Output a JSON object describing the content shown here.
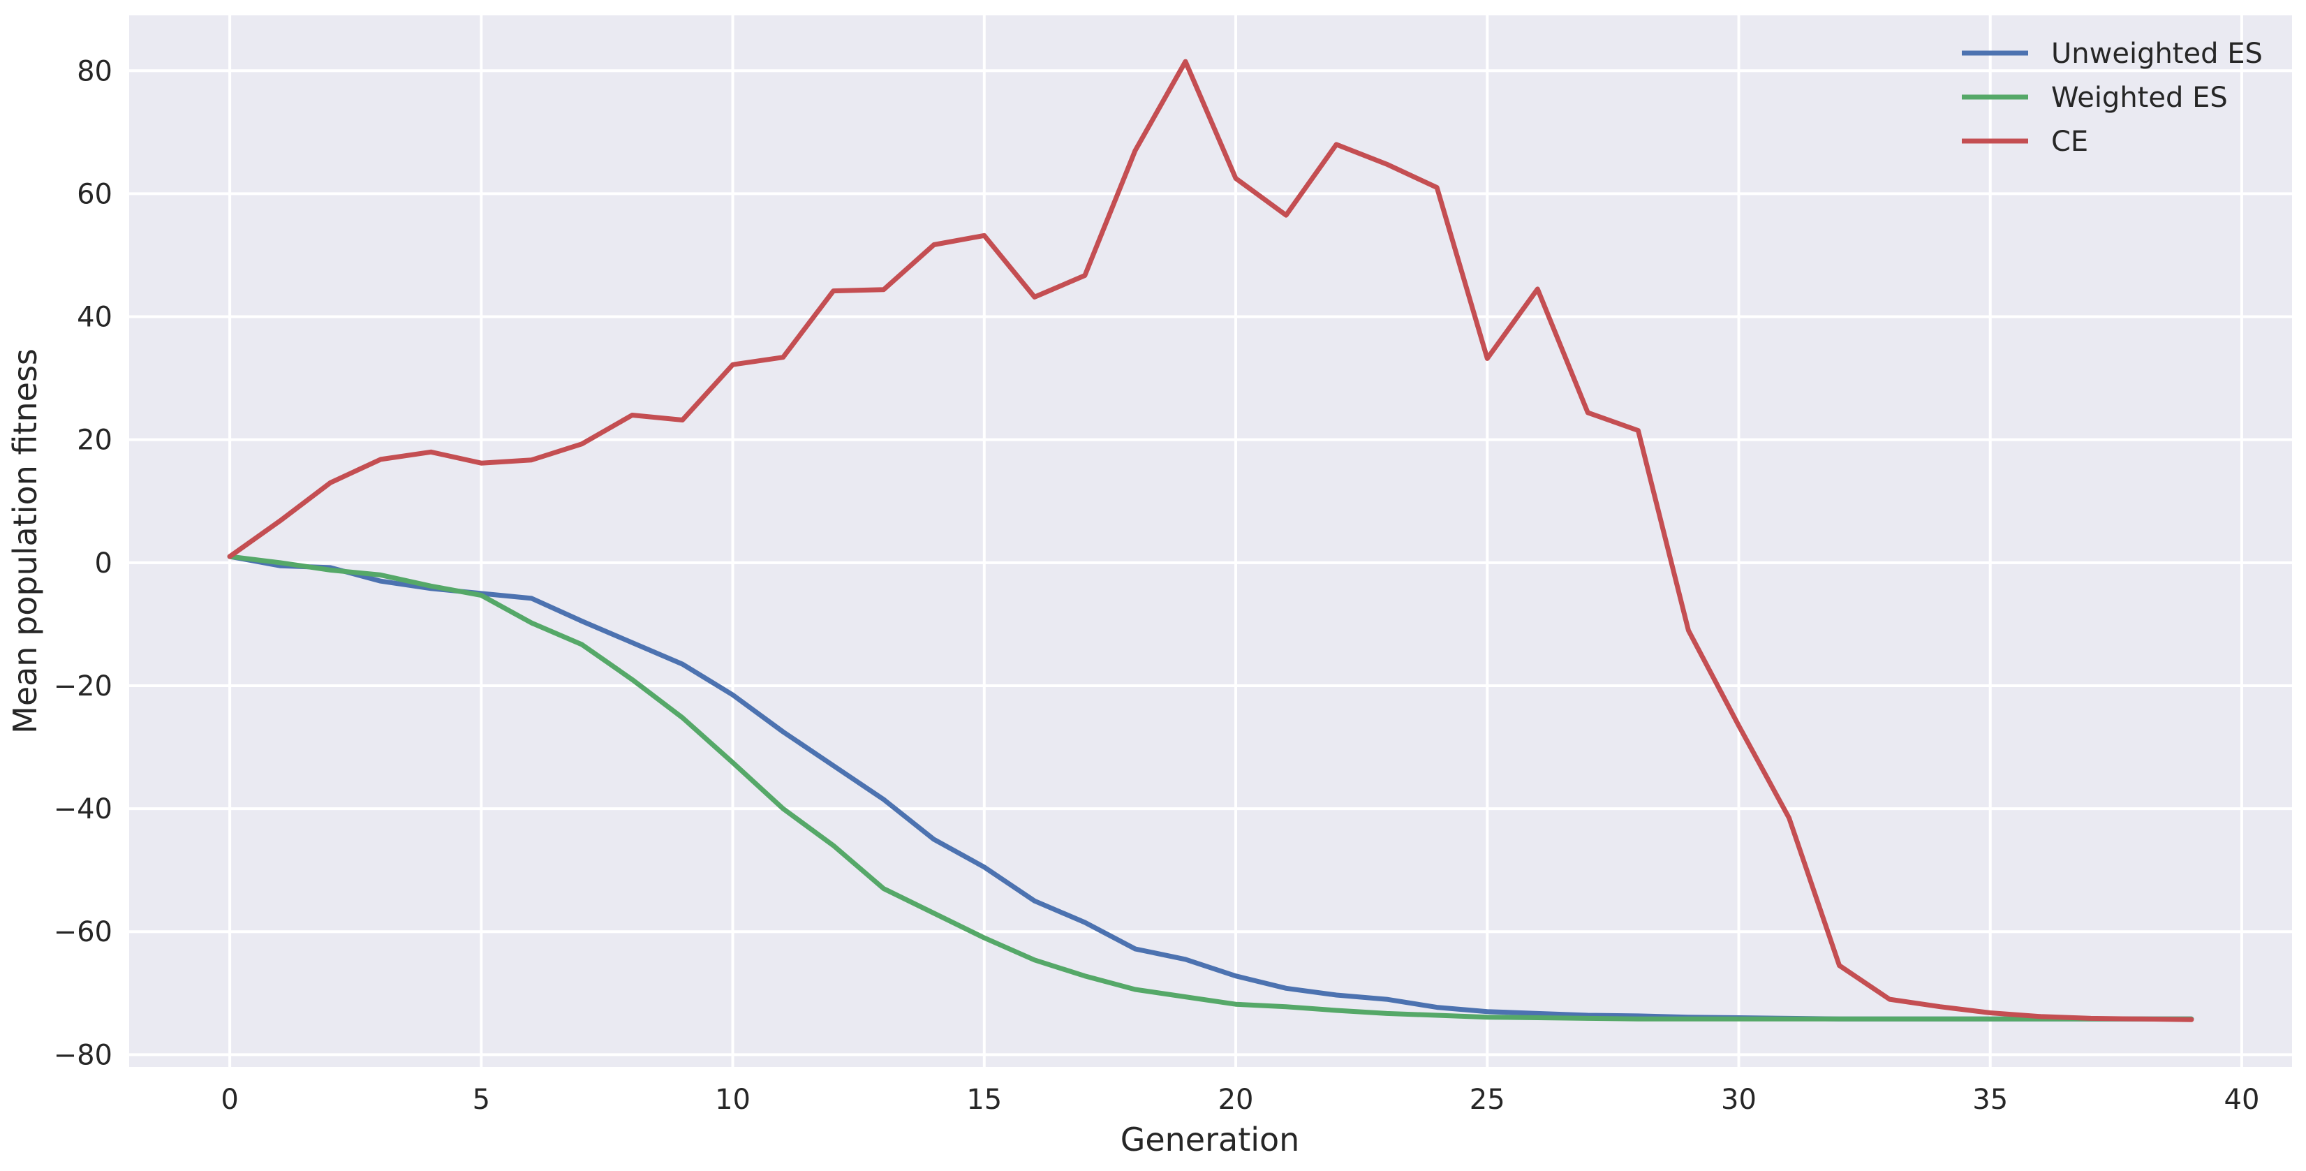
{
  "chart_data": {
    "type": "line",
    "xlabel": "Generation",
    "ylabel": "Mean population fitness",
    "xlim": [
      -2,
      41
    ],
    "ylim": [
      -82,
      89
    ],
    "xticks": [
      0,
      5,
      10,
      15,
      20,
      25,
      30,
      35,
      40
    ],
    "yticks": [
      -80,
      -60,
      -40,
      -20,
      0,
      20,
      40,
      60,
      80
    ],
    "xtick_labels": [
      "0",
      "5",
      "10",
      "15",
      "20",
      "25",
      "30",
      "35",
      "40"
    ],
    "ytick_labels": [
      "−80",
      "−60",
      "−40",
      "−20",
      "0",
      "20",
      "40",
      "60",
      "80"
    ],
    "grid": true,
    "legend_position": "top-right",
    "background": "#eaeaf2",
    "x": [
      0,
      1,
      2,
      3,
      4,
      5,
      6,
      7,
      8,
      9,
      10,
      11,
      12,
      13,
      14,
      15,
      16,
      17,
      18,
      19,
      20,
      21,
      22,
      23,
      24,
      25,
      26,
      27,
      28,
      29,
      30,
      31,
      32,
      33,
      34,
      35,
      36,
      37,
      38,
      39
    ],
    "series": [
      {
        "name": "Unweighted ES",
        "color": "#4c72b0",
        "values": [
          1,
          -0.5,
          -0.8,
          -3,
          -4.2,
          -5,
          -5.8,
          -9.5,
          -13,
          -16.5,
          -21.5,
          -27.5,
          -33,
          -38.5,
          -45,
          -49.5,
          -55,
          -58.5,
          -62.8,
          -64.5,
          -67.2,
          -69.2,
          -70.3,
          -71,
          -72.3,
          -73,
          -73.3,
          -73.6,
          -73.7,
          -73.9,
          -74,
          -74.1,
          -74.2,
          -74.2,
          -74.2,
          -74.2,
          -74.2,
          -74.2,
          -74.2,
          -74.2
        ]
      },
      {
        "name": "Weighted ES",
        "color": "#55a868",
        "values": [
          1,
          0,
          -1.2,
          -2,
          -3.8,
          -5.3,
          -9.8,
          -13.3,
          -19,
          -25.2,
          -32.5,
          -40,
          -46,
          -53,
          -57,
          -61,
          -64.6,
          -67.2,
          -69.4,
          -70.6,
          -71.8,
          -72.2,
          -72.8,
          -73.3,
          -73.6,
          -73.9,
          -74,
          -74.1,
          -74.2,
          -74.2,
          -74.2,
          -74.2,
          -74.2,
          -74.2,
          -74.2,
          -74.2,
          -74.2,
          -74.2,
          -74.2,
          -74.2
        ]
      },
      {
        "name": "CE",
        "color": "#c44e52",
        "values": [
          1,
          6.8,
          13,
          16.8,
          18,
          16.2,
          16.7,
          19.3,
          24,
          23.2,
          32.2,
          33.4,
          44.2,
          44.4,
          51.7,
          53.2,
          43.2,
          46.7,
          67,
          81.5,
          62.5,
          56.5,
          68,
          64.8,
          61,
          33.2,
          44.5,
          24.4,
          21.5,
          -11,
          -26.5,
          -41.5,
          -65.5,
          -71,
          -72.2,
          -73.2,
          -73.8,
          -74.1,
          -74.2,
          -74.3
        ]
      }
    ]
  }
}
